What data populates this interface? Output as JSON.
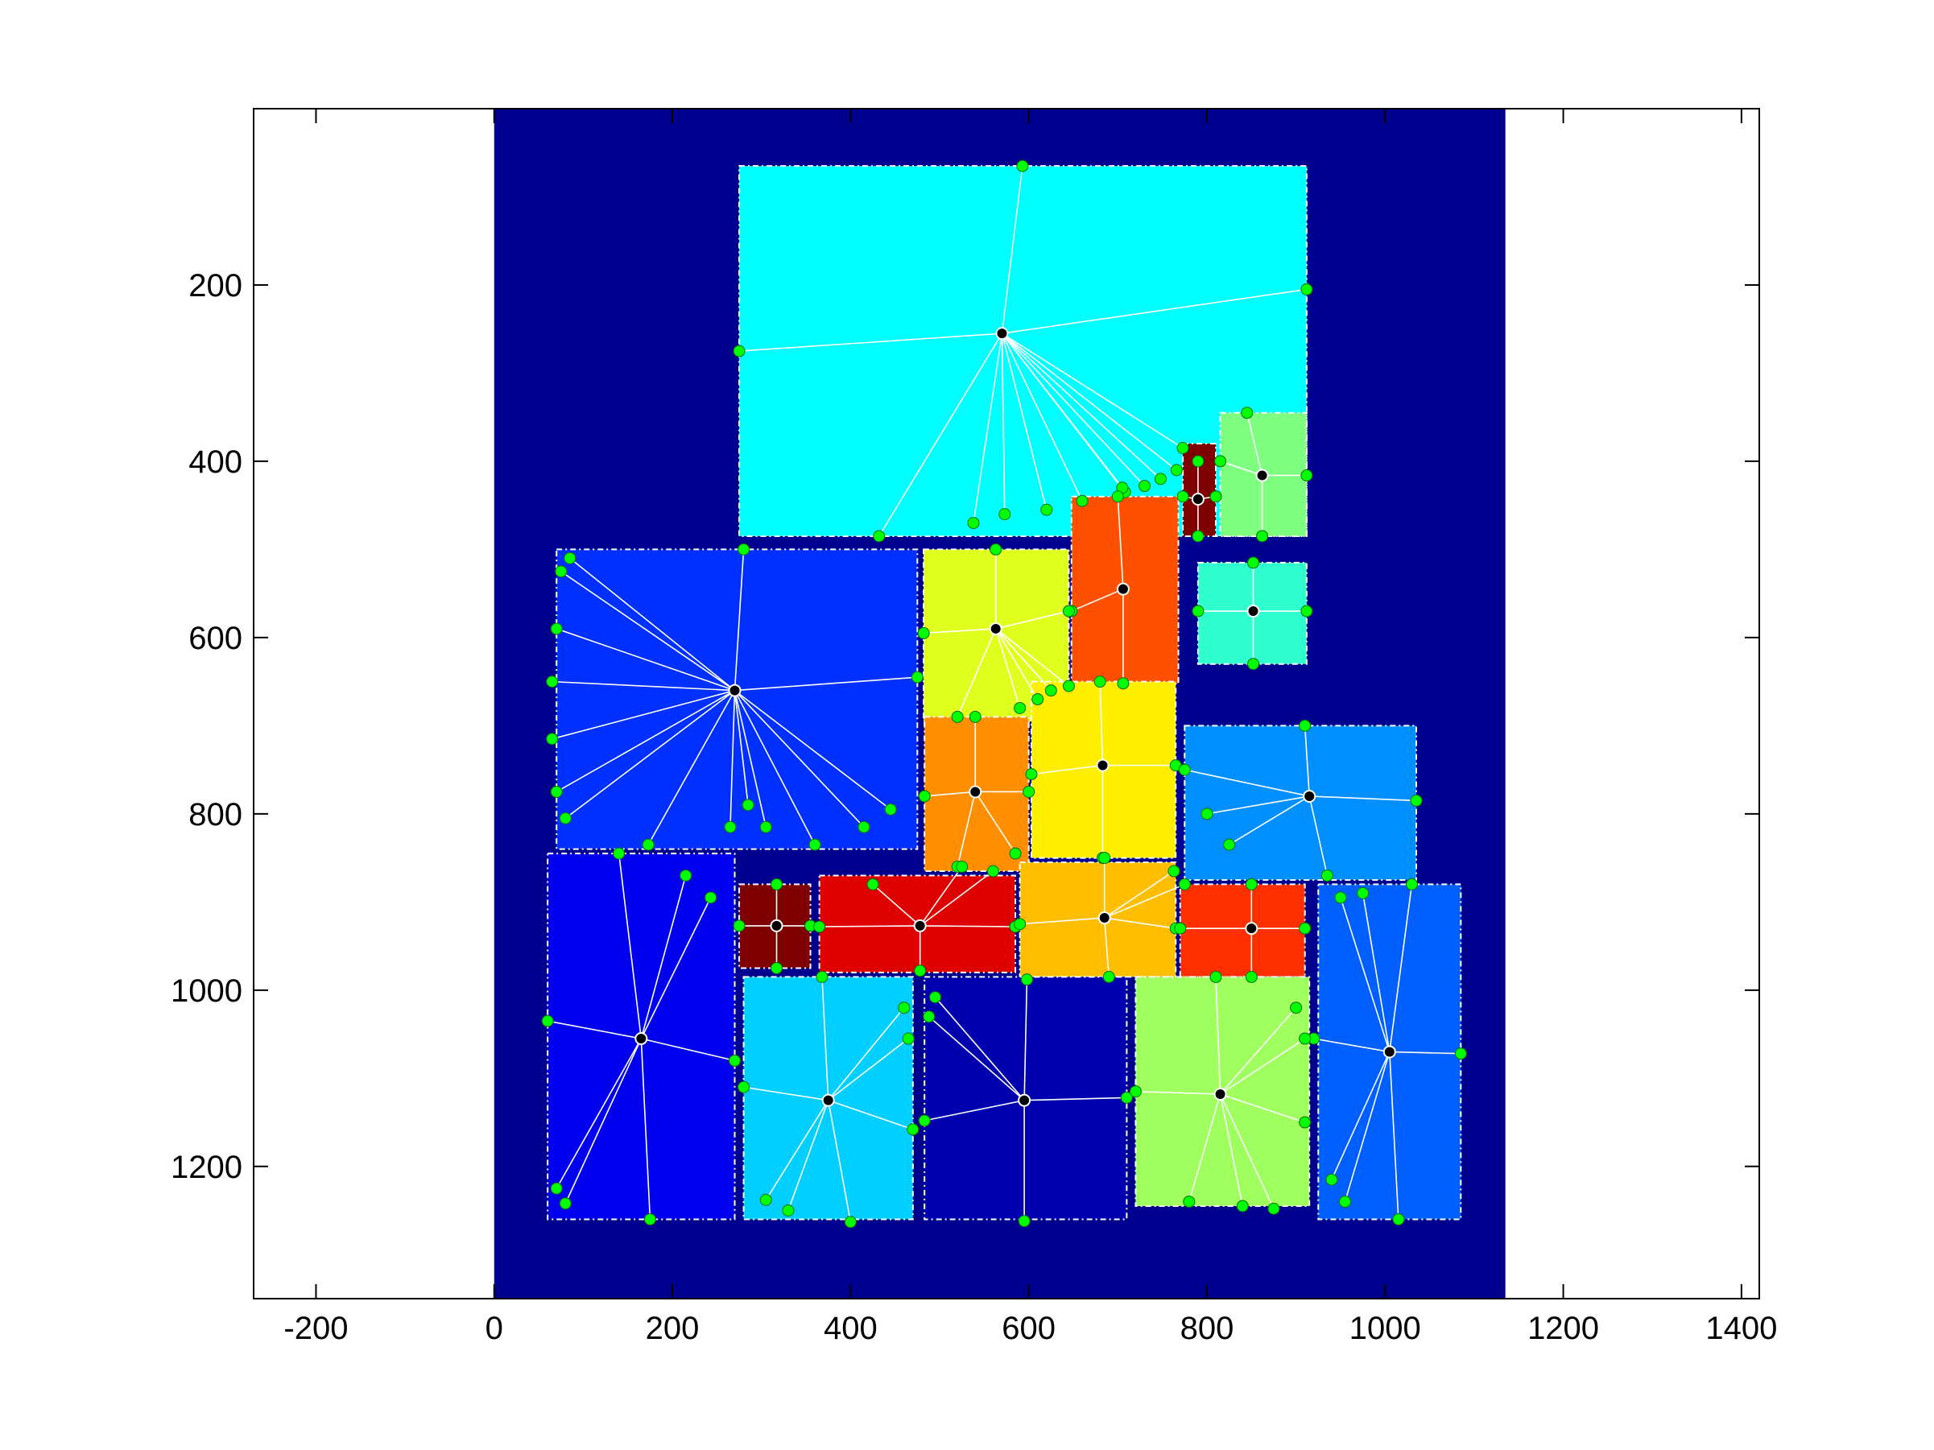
{
  "chart_data": {
    "type": "scatter",
    "title": "",
    "xlabel": "",
    "ylabel": "",
    "xlim": [
      -270,
      1420
    ],
    "ylim": [
      1350,
      0
    ],
    "y_reversed": true,
    "grid": false,
    "xticks": [
      -200,
      0,
      200,
      400,
      600,
      800,
      1000,
      1200,
      1400
    ],
    "yticks": [
      200,
      400,
      600,
      800,
      1000,
      1200
    ],
    "xtick_labels": [
      "-200",
      "0",
      "200",
      "400",
      "600",
      "800",
      "1000",
      "1200",
      "1400"
    ],
    "ytick_labels": [
      "200",
      "400",
      "600",
      "800",
      "1000",
      "1200"
    ],
    "background": {
      "x": [
        0,
        1135
      ],
      "y": [
        0,
        1350
      ],
      "color": "#00008f"
    },
    "rooms": [
      {
        "x0": 275,
        "y0": 65,
        "x1": 912,
        "y1": 485,
        "color": "#00ffff",
        "center": [
          570,
          255
        ],
        "ports": [
          [
            593,
            65
          ],
          [
            912,
            205
          ],
          [
            275,
            275
          ],
          [
            432,
            485
          ],
          [
            538,
            470
          ],
          [
            573,
            460
          ],
          [
            620,
            455
          ],
          [
            660,
            445
          ],
          [
            708,
            435
          ],
          [
            730,
            428
          ],
          [
            748,
            420
          ],
          [
            766,
            410
          ],
          [
            773,
            385
          ],
          [
            705,
            430
          ]
        ]
      },
      {
        "x0": 815,
        "y0": 345,
        "x1": 912,
        "y1": 485,
        "color": "#7fff7f",
        "center": [
          862,
          416
        ],
        "ports": [
          [
            845,
            345
          ],
          [
            815,
            400
          ],
          [
            912,
            416
          ],
          [
            862,
            485
          ]
        ]
      },
      {
        "x0": 773,
        "y0": 380,
        "x1": 810,
        "y1": 485,
        "color": "#7f0000",
        "center": [
          790,
          443
        ],
        "ports": [
          [
            790,
            400
          ],
          [
            773,
            440
          ],
          [
            810,
            440
          ],
          [
            790,
            485
          ]
        ]
      },
      {
        "x0": 648,
        "y0": 440,
        "x1": 768,
        "y1": 652,
        "color": "#ff5000",
        "center": [
          706,
          545
        ],
        "ports": [
          [
            700,
            440
          ],
          [
            648,
            570
          ],
          [
            706,
            652
          ]
        ]
      },
      {
        "x0": 790,
        "y0": 515,
        "x1": 912,
        "y1": 630,
        "color": "#2fffcf",
        "center": [
          852,
          570
        ],
        "ports": [
          [
            852,
            515
          ],
          [
            790,
            570
          ],
          [
            912,
            570
          ],
          [
            852,
            630
          ]
        ]
      },
      {
        "x0": 482,
        "y0": 500,
        "x1": 645,
        "y1": 695,
        "color": "#dfff1f",
        "center": [
          563,
          590
        ],
        "ports": [
          [
            563,
            500
          ],
          [
            482,
            595
          ],
          [
            645,
            570
          ],
          [
            520,
            690
          ],
          [
            590,
            680
          ],
          [
            610,
            670
          ],
          [
            625,
            660
          ],
          [
            645,
            655
          ]
        ]
      },
      {
        "x0": 70,
        "y0": 500,
        "x1": 475,
        "y1": 840,
        "color": "#0030ff",
        "center": [
          270,
          660
        ],
        "ports": [
          [
            280,
            500
          ],
          [
            85,
            510
          ],
          [
            75,
            525
          ],
          [
            70,
            590
          ],
          [
            65,
            650
          ],
          [
            65,
            715
          ],
          [
            70,
            775
          ],
          [
            80,
            805
          ],
          [
            173,
            835
          ],
          [
            265,
            815
          ],
          [
            285,
            790
          ],
          [
            305,
            815
          ],
          [
            360,
            835
          ],
          [
            415,
            815
          ],
          [
            445,
            795
          ],
          [
            475,
            645
          ]
        ]
      },
      {
        "x0": 483,
        "y0": 690,
        "x1": 600,
        "y1": 865,
        "color": "#ff8f00",
        "center": [
          540,
          775
        ],
        "ports": [
          [
            540,
            690
          ],
          [
            483,
            780
          ],
          [
            600,
            775
          ],
          [
            520,
            860
          ],
          [
            585,
            845
          ]
        ]
      },
      {
        "x0": 603,
        "y0": 650,
        "x1": 765,
        "y1": 850,
        "color": "#ffef00",
        "center": [
          683,
          745
        ],
        "ports": [
          [
            680,
            650
          ],
          [
            603,
            755
          ],
          [
            765,
            745
          ],
          [
            683,
            850
          ]
        ]
      },
      {
        "x0": 775,
        "y0": 700,
        "x1": 1035,
        "y1": 875,
        "color": "#008fff",
        "center": [
          915,
          780
        ],
        "ports": [
          [
            910,
            700
          ],
          [
            775,
            750
          ],
          [
            800,
            800
          ],
          [
            825,
            835
          ],
          [
            1035,
            785
          ],
          [
            935,
            870
          ]
        ]
      },
      {
        "x0": 60,
        "y0": 845,
        "x1": 270,
        "y1": 1260,
        "color": "#0000ef",
        "center": [
          165,
          1055
        ],
        "ports": [
          [
            140,
            845
          ],
          [
            215,
            870
          ],
          [
            243,
            895
          ],
          [
            60,
            1035
          ],
          [
            270,
            1080
          ],
          [
            70,
            1225
          ],
          [
            80,
            1242
          ],
          [
            175,
            1260
          ]
        ]
      },
      {
        "x0": 275,
        "y0": 880,
        "x1": 355,
        "y1": 975,
        "color": "#7f0000",
        "center": [
          317,
          927
        ],
        "ports": [
          [
            317,
            880
          ],
          [
            275,
            927
          ],
          [
            355,
            927
          ],
          [
            317,
            975
          ]
        ]
      },
      {
        "x0": 365,
        "y0": 870,
        "x1": 585,
        "y1": 980,
        "color": "#df0000",
        "center": [
          478,
          927
        ],
        "ports": [
          [
            425,
            880
          ],
          [
            365,
            928
          ],
          [
            585,
            928
          ],
          [
            478,
            978
          ],
          [
            525,
            860
          ],
          [
            560,
            865
          ]
        ]
      },
      {
        "x0": 590,
        "y0": 855,
        "x1": 765,
        "y1": 985,
        "color": "#ffbf00",
        "center": [
          685,
          918
        ],
        "ports": [
          [
            685,
            850
          ],
          [
            590,
            925
          ],
          [
            765,
            930
          ],
          [
            690,
            985
          ],
          [
            763,
            865
          ],
          [
            775,
            880
          ]
        ]
      },
      {
        "x0": 770,
        "y0": 880,
        "x1": 910,
        "y1": 985,
        "color": "#ff2f00",
        "center": [
          850,
          930
        ],
        "ports": [
          [
            850,
            880
          ],
          [
            770,
            930
          ],
          [
            910,
            930
          ],
          [
            850,
            985
          ]
        ]
      },
      {
        "x0": 925,
        "y0": 880,
        "x1": 1085,
        "y1": 1260,
        "color": "#0060ff",
        "center": [
          1005,
          1070
        ],
        "ports": [
          [
            950,
            895
          ],
          [
            975,
            890
          ],
          [
            1030,
            880
          ],
          [
            920,
            1055
          ],
          [
            1085,
            1072
          ],
          [
            940,
            1215
          ],
          [
            955,
            1240
          ],
          [
            1015,
            1260
          ]
        ]
      },
      {
        "x0": 280,
        "y0": 985,
        "x1": 470,
        "y1": 1260,
        "color": "#00cfff",
        "center": [
          375,
          1125
        ],
        "ports": [
          [
            368,
            985
          ],
          [
            460,
            1020
          ],
          [
            465,
            1055
          ],
          [
            280,
            1110
          ],
          [
            470,
            1158
          ],
          [
            305,
            1238
          ],
          [
            330,
            1250
          ],
          [
            400,
            1263
          ]
        ]
      },
      {
        "x0": 483,
        "y0": 985,
        "x1": 710,
        "y1": 1260,
        "color": "#0000af",
        "center": [
          595,
          1125
        ],
        "ports": [
          [
            598,
            988
          ],
          [
            495,
            1008
          ],
          [
            488,
            1030
          ],
          [
            483,
            1148
          ],
          [
            710,
            1122
          ],
          [
            595,
            1262
          ]
        ]
      },
      {
        "x0": 720,
        "y0": 985,
        "x1": 915,
        "y1": 1245,
        "color": "#9fff5f",
        "center": [
          815,
          1118
        ],
        "ports": [
          [
            810,
            985
          ],
          [
            900,
            1020
          ],
          [
            910,
            1055
          ],
          [
            720,
            1115
          ],
          [
            910,
            1150
          ],
          [
            780,
            1240
          ],
          [
            840,
            1245
          ],
          [
            875,
            1248
          ]
        ]
      }
    ]
  }
}
